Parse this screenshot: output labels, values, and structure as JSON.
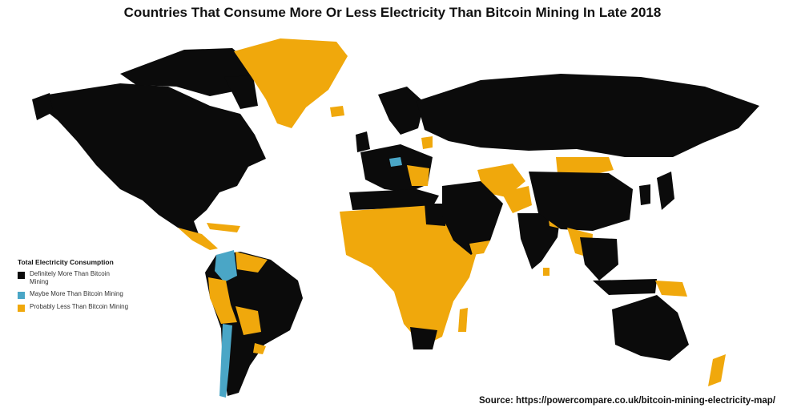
{
  "title": "Countries That Consume More Or Less Electricity Than Bitcoin Mining In Late 2018",
  "legend": {
    "title": "Total Electricity Consumption",
    "items": [
      {
        "label": "Definitely More Than Bitcoin Mining",
        "color": "#0b0b0b"
      },
      {
        "label": "Maybe More Than Bitcoin Mining",
        "color": "#4aa6c6"
      },
      {
        "label": "Probably Less Than Bitcoin Mining",
        "color": "#f0a80c"
      }
    ]
  },
  "source": "Source: https://powercompare.co.uk/bitcoin-mining-electricity-map/",
  "colors": {
    "more": "#0b0b0b",
    "maybe": "#4aa6c6",
    "less": "#f0a80c",
    "background": "#ffffff"
  }
}
